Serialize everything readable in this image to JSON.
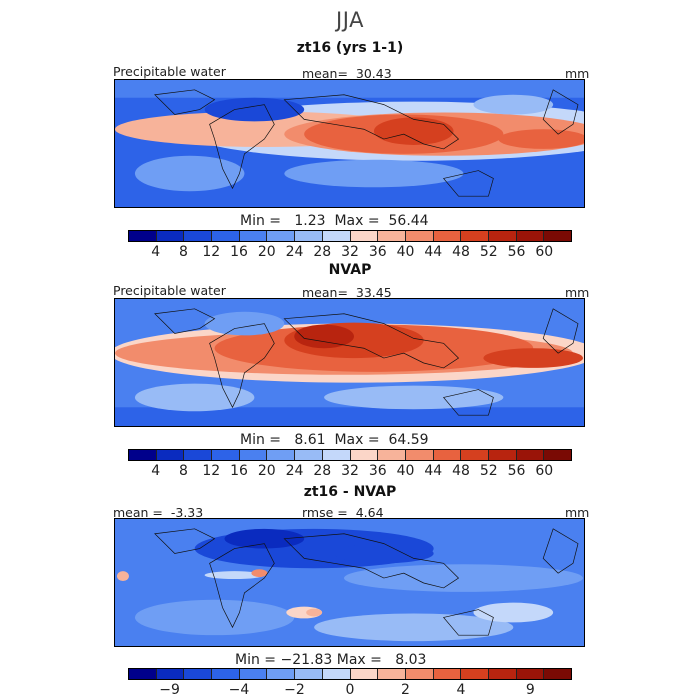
{
  "title": "JJA",
  "panels": [
    {
      "title": "zt16 (yrs 1-1)",
      "field_label": "Precipitable water",
      "stat_label": "mean=",
      "stat_value": "30.43",
      "units": "mm",
      "min_label": "Min =",
      "min_value": "1.23",
      "max_label": "Max =",
      "max_value": "56.44"
    },
    {
      "title": "NVAP",
      "field_label": "Precipitable water",
      "stat_label": "mean=",
      "stat_value": "33.45",
      "units": "mm",
      "min_label": "Min =",
      "min_value": "8.61",
      "max_label": "Max =",
      "max_value": "64.59"
    },
    {
      "title": "zt16 - NVAP",
      "mean_label": "mean =",
      "mean_value": "-3.33",
      "rmse_label": "rmse =",
      "rmse_value": "4.64",
      "units": "mm",
      "min_label": "Min =",
      "min_value": "−21.83",
      "max_label": "Max =",
      "max_value": "8.03"
    }
  ],
  "colorbar_abs": {
    "ticks": [
      "4",
      "8",
      "12",
      "16",
      "20",
      "24",
      "28",
      "32",
      "36",
      "40",
      "44",
      "48",
      "52",
      "56",
      "60"
    ],
    "colors": [
      "#00008b",
      "#0a2bbf",
      "#1a48d8",
      "#2d63e8",
      "#4a80f0",
      "#6f9ef4",
      "#98bbf6",
      "#c4d8fa",
      "#fbd6c8",
      "#f7b39a",
      "#f28c6c",
      "#e8623f",
      "#d5401f",
      "#b8240f",
      "#9a1408",
      "#7a0a04"
    ]
  },
  "colorbar_diff": {
    "ticks": [
      "−9",
      "−4",
      "−2",
      "0",
      "2",
      "4",
      "9"
    ],
    "colors": [
      "#00008b",
      "#0a2bbf",
      "#1a48d8",
      "#2d63e8",
      "#4a80f0",
      "#6f9ef4",
      "#98bbf6",
      "#c4d8fa",
      "#fbd6c8",
      "#f7b39a",
      "#f28c6c",
      "#e8623f",
      "#d5401f",
      "#b8240f",
      "#9a1408",
      "#7a0a04"
    ]
  }
}
